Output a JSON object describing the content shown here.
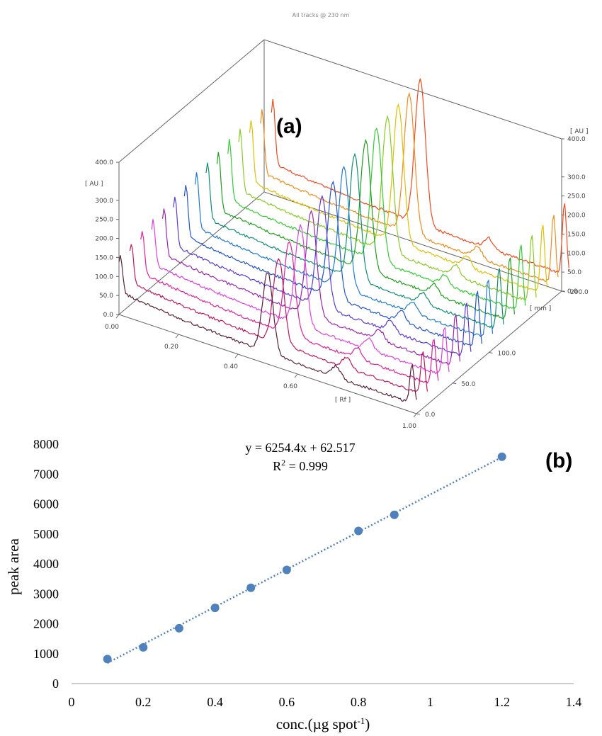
{
  "chart_data": [
    {
      "type": "line",
      "panel_label": "(a)",
      "title": "All tracks @ 230 nm",
      "xlabel": "[ Rf ]",
      "ylabel": "[ AU ]",
      "zlabel": "[ mm ]",
      "x_ticks": [
        "0.00",
        "0.20",
        "0.40",
        "0.60",
        "1.00"
      ],
      "y_ticks": [
        "0.0",
        "50.0",
        "100.0",
        "150.0",
        "200.0",
        "250.0",
        "300.0",
        "400.0"
      ],
      "y_ticks_right": [
        "0.0",
        "50.0",
        "100.0",
        "150.0",
        "200.0",
        "250.0",
        "300.0",
        "400.0"
      ],
      "z_ticks": [
        "0.0",
        "50.0",
        "100.0",
        "200.0"
      ],
      "xlim": [
        0,
        1
      ],
      "ylim": [
        0,
        400
      ],
      "zlim": [
        0,
        200
      ],
      "main_peak_rf": 0.5,
      "tracks": [
        {
          "z": 0,
          "color": "#5a1f3a",
          "peak_au": 210
        },
        {
          "z": 15,
          "color": "#c2185b",
          "peak_au": 225
        },
        {
          "z": 30,
          "color": "#e0219a",
          "peak_au": 245
        },
        {
          "z": 45,
          "color": "#e040e0",
          "peak_au": 260
        },
        {
          "z": 60,
          "color": "#9c27b0",
          "peak_au": 275
        },
        {
          "z": 75,
          "color": "#5c3bd6",
          "peak_au": 290
        },
        {
          "z": 90,
          "color": "#2255cc",
          "peak_au": 305
        },
        {
          "z": 105,
          "color": "#1f7ad6",
          "peak_au": 320
        },
        {
          "z": 120,
          "color": "#0f8f6f",
          "peak_au": 330
        },
        {
          "z": 135,
          "color": "#1fa01f",
          "peak_au": 340
        },
        {
          "z": 150,
          "color": "#33cc33",
          "peak_au": 350
        },
        {
          "z": 165,
          "color": "#88cc22",
          "peak_au": 355
        },
        {
          "z": 180,
          "color": "#e0c000",
          "peak_au": 360
        },
        {
          "z": 195,
          "color": "#f08c1c",
          "peak_au": 365
        },
        {
          "z": 210,
          "color": "#f04a1c",
          "peak_au": 380
        }
      ]
    },
    {
      "type": "scatter",
      "panel_label": "(b)",
      "xlabel_main": "conc.(µg spot",
      "xlabel_sup": "-1",
      "xlabel_end": ")",
      "ylabel": "peak area",
      "equation": "y = 6254.4x + 62.517",
      "r2_prefix": "R",
      "r2_sup": "2",
      "r2_value": " = 0.999",
      "xlim": [
        0,
        1.4
      ],
      "ylim": [
        0,
        8000
      ],
      "x_ticks": [
        "0",
        "0.2",
        "0.4",
        "0.6",
        "0.8",
        "1",
        "1.2",
        "1.4"
      ],
      "y_ticks": [
        "0",
        "1000",
        "2000",
        "3000",
        "4000",
        "5000",
        "6000",
        "7000",
        "8000"
      ],
      "marker_color": "#4f81bd",
      "trendline": {
        "slope": 6254.4,
        "intercept": 62.517,
        "style": "dotted",
        "color": "#4f81bd"
      },
      "x": [
        0.1,
        0.2,
        0.3,
        0.4,
        0.5,
        0.6,
        0.8,
        0.9,
        1.2
      ],
      "y": [
        820,
        1210,
        1850,
        2530,
        3200,
        3800,
        5100,
        5640,
        7580
      ]
    }
  ]
}
